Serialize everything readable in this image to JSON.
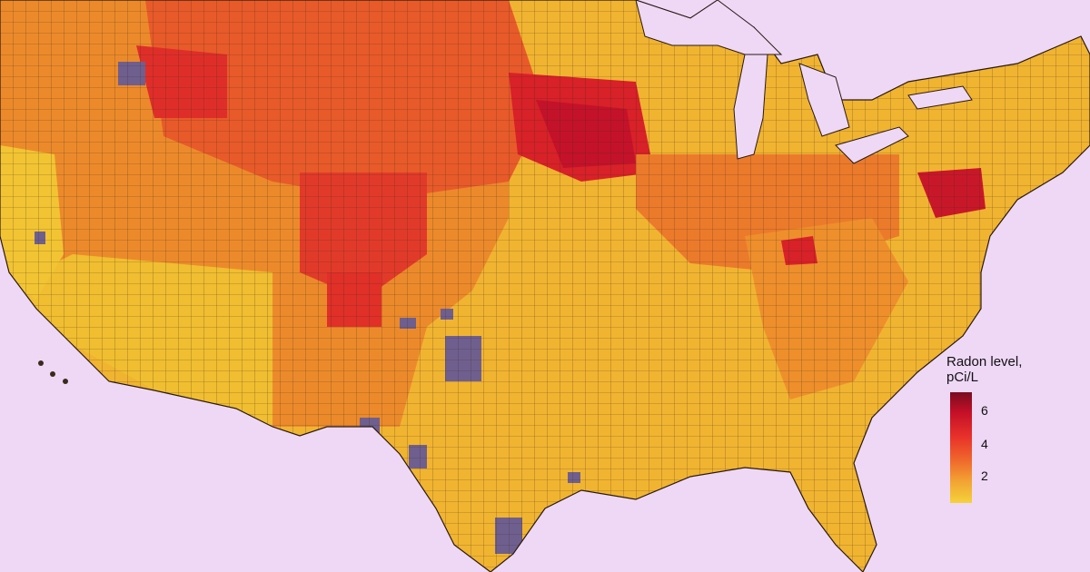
{
  "map": {
    "legend": {
      "title_line1": "Radon level,",
      "title_line2": "pCi/L",
      "ticks": [
        "6",
        "4",
        "2"
      ],
      "colors": {
        "high": "#7a0c1f",
        "mid_high": "#d91a2a",
        "mid": "#ef6a2b",
        "low": "#f4d23a",
        "no_data": "#6f5f8f"
      }
    },
    "colors": {
      "water": "#efd8f6",
      "border": "#3a2a1a"
    }
  }
}
